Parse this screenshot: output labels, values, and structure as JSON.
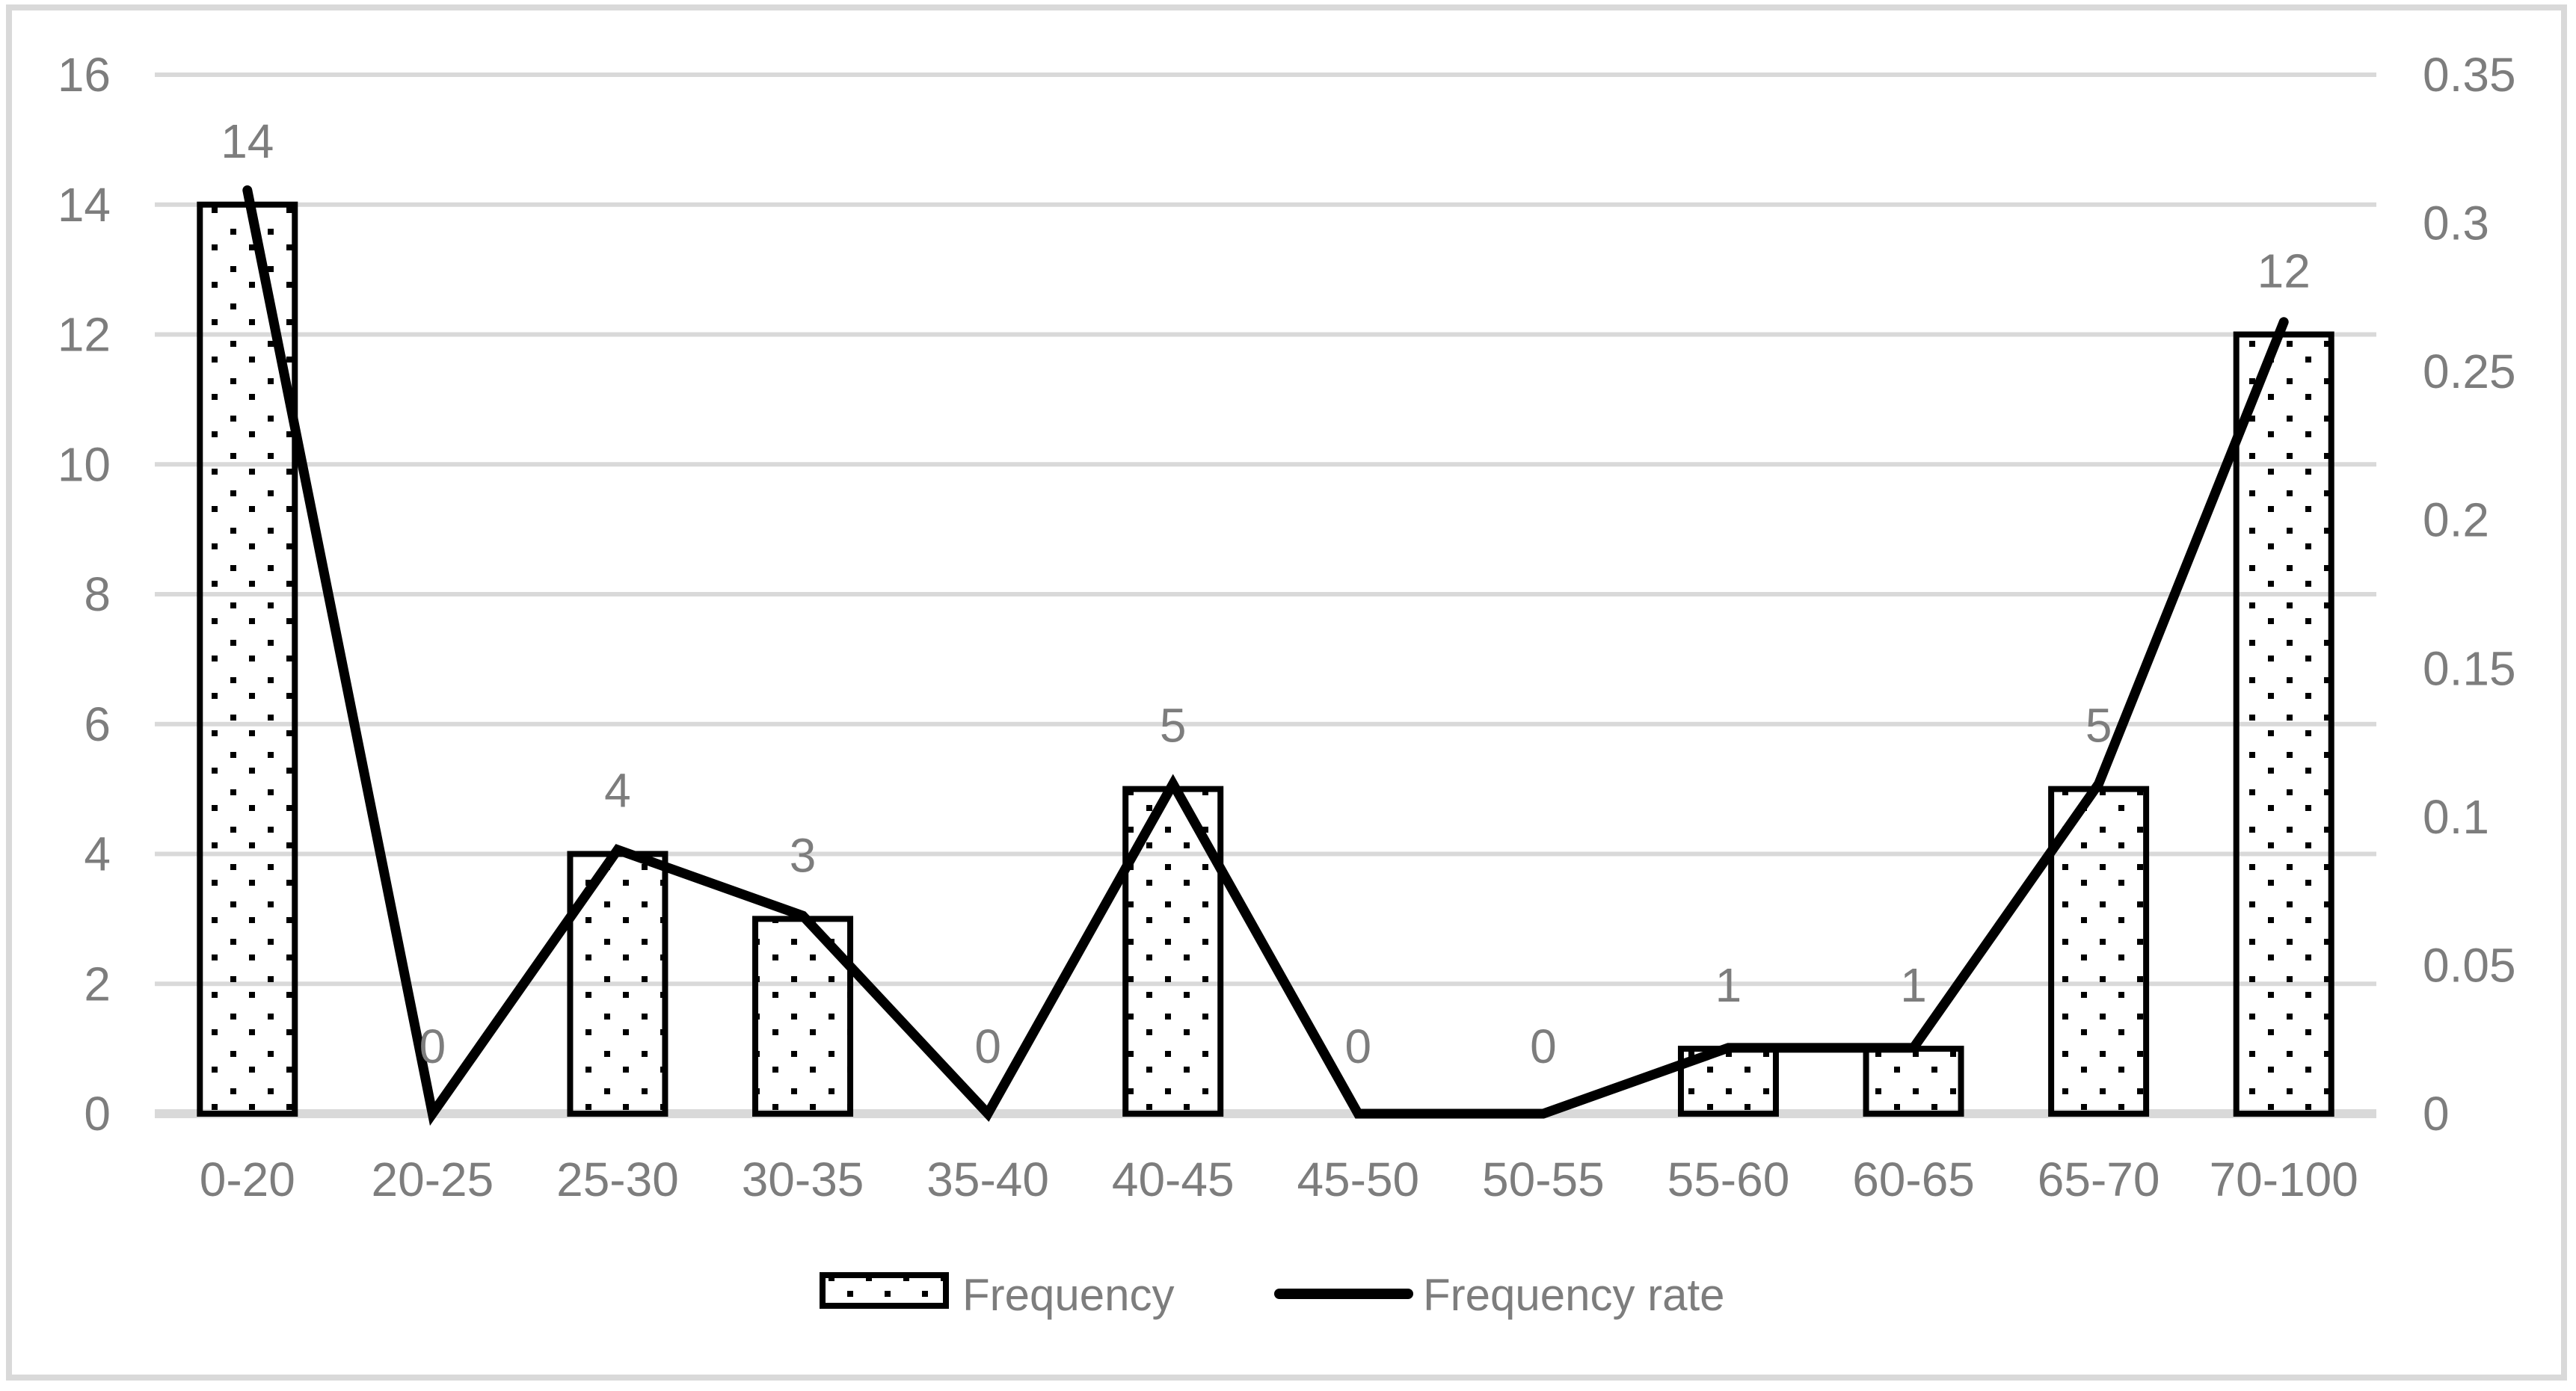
{
  "chart_data": {
    "type": "combo-bar-line",
    "title": "",
    "categories": [
      "0-20",
      "20-25",
      "25-30",
      "30-35",
      "35-40",
      "40-45",
      "45-50",
      "50-55",
      "55-60",
      "60-65",
      "65-70",
      "70-100"
    ],
    "series": [
      {
        "name": "Frequency",
        "type": "bar",
        "axis": "left",
        "values": [
          14,
          0,
          4,
          3,
          0,
          5,
          0,
          0,
          1,
          1,
          5,
          12
        ],
        "data_labels": [
          "14",
          "0",
          "4",
          "3",
          "0",
          "5",
          "0",
          "0",
          "1",
          "1",
          "5",
          "12"
        ]
      },
      {
        "name": "Frequency rate",
        "type": "line",
        "axis": "right",
        "values": [
          0.3111,
          0,
          0.0889,
          0.0667,
          0,
          0.1111,
          0,
          0,
          0.0222,
          0.0222,
          0.1111,
          0.2667
        ]
      }
    ],
    "axes": {
      "left": {
        "min": 0,
        "max": 16,
        "step": 2,
        "tick_labels": [
          "0",
          "2",
          "4",
          "6",
          "8",
          "10",
          "12",
          "14",
          "16"
        ]
      },
      "right": {
        "min": 0,
        "max": 0.35,
        "step": 0.05,
        "tick_labels": [
          "0",
          "0.05",
          "0.1",
          "0.15",
          "0.2",
          "0.25",
          "0.3",
          "0.35"
        ]
      }
    },
    "grid": true,
    "legend": {
      "position": "bottom-center",
      "items": [
        {
          "label": "Frequency",
          "swatch": "dotted-bar"
        },
        {
          "label": "Frequency rate",
          "swatch": "solid-line"
        }
      ]
    },
    "colors": {
      "bar_fill": "#ffffff",
      "bar_dots": "#000000",
      "bar_border": "#000000",
      "line": "#000000",
      "gridline": "#d9d9d9",
      "axis_line": "#d9d9d9",
      "frame_border": "#d9d9d9",
      "label_text": "#7d7d7d",
      "background": "#ffffff"
    }
  }
}
